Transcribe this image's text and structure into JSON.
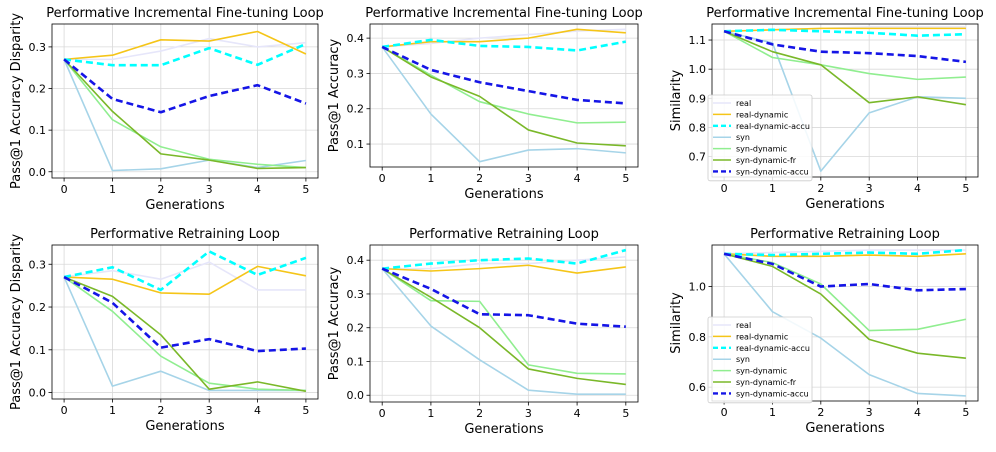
{
  "chart_data": [
    {
      "type": "line",
      "title": "Performative Incremental Fine-tuning Loop",
      "xlabel": "Generations",
      "ylabel": "Pass@1 Accuracy Disparity",
      "x": [
        0,
        1,
        2,
        3,
        4,
        5
      ],
      "xlim": [
        -0.25,
        5.25
      ],
      "ylim": [
        -0.015,
        0.355
      ],
      "yticks": [
        "0.0",
        "0.1",
        "0.2",
        "0.3"
      ],
      "grid": true,
      "legend": "none",
      "series": [
        {
          "name": "real",
          "color": "#e6e6fa",
          "style": "solid",
          "values": [
            0.27,
            0.27,
            0.29,
            0.32,
            0.3,
            0.31
          ]
        },
        {
          "name": "real-dynamic",
          "color": "#f5c518",
          "style": "solid",
          "values": [
            0.27,
            0.28,
            0.317,
            0.314,
            0.337,
            0.283
          ]
        },
        {
          "name": "real-dynamic-accu",
          "color": "#00ffff",
          "style": "dashed",
          "values": [
            0.27,
            0.256,
            0.256,
            0.297,
            0.257,
            0.307
          ]
        },
        {
          "name": "syn",
          "color": "#a6d4e8",
          "style": "solid",
          "values": [
            0.27,
            0.003,
            0.007,
            0.028,
            0.01,
            0.027
          ]
        },
        {
          "name": "syn-dynamic",
          "color": "#90ee90",
          "style": "solid",
          "values": [
            0.27,
            0.125,
            0.06,
            0.03,
            0.018,
            0.01
          ]
        },
        {
          "name": "syn-dynamic-fr",
          "color": "#7ab829",
          "style": "solid",
          "values": [
            0.27,
            0.145,
            0.043,
            0.028,
            0.008,
            0.01
          ]
        },
        {
          "name": "syn-dynamic-accu",
          "color": "#1515e6",
          "style": "dashed",
          "values": [
            0.27,
            0.175,
            0.143,
            0.182,
            0.208,
            0.164
          ]
        }
      ]
    },
    {
      "type": "line",
      "title": "Performative Incremental Fine-tuning Loop",
      "xlabel": "Generations",
      "ylabel": "Pass@1 Accuracy",
      "x": [
        0,
        1,
        2,
        3,
        4,
        5
      ],
      "xlim": [
        -0.25,
        5.25
      ],
      "ylim": [
        0.035,
        0.44
      ],
      "yticks": [
        "0.1",
        "0.2",
        "0.3",
        "0.4"
      ],
      "grid": true,
      "legend": "none",
      "series": [
        {
          "name": "real",
          "color": "#e6e6fa",
          "style": "solid",
          "values": [
            0.375,
            0.385,
            0.4,
            0.41,
            0.42,
            0.425
          ]
        },
        {
          "name": "real-dynamic",
          "color": "#f5c518",
          "style": "solid",
          "values": [
            0.375,
            0.39,
            0.39,
            0.4,
            0.425,
            0.415
          ]
        },
        {
          "name": "real-dynamic-accu",
          "color": "#00ffff",
          "style": "dashed",
          "values": [
            0.375,
            0.395,
            0.378,
            0.375,
            0.365,
            0.39
          ]
        },
        {
          "name": "syn",
          "color": "#a6d4e8",
          "style": "solid",
          "values": [
            0.375,
            0.185,
            0.05,
            0.083,
            0.087,
            0.075
          ]
        },
        {
          "name": "syn-dynamic",
          "color": "#90ee90",
          "style": "solid",
          "values": [
            0.375,
            0.295,
            0.22,
            0.185,
            0.16,
            0.162
          ]
        },
        {
          "name": "syn-dynamic-fr",
          "color": "#7ab829",
          "style": "solid",
          "values": [
            0.375,
            0.29,
            0.235,
            0.14,
            0.103,
            0.095
          ]
        },
        {
          "name": "syn-dynamic-accu",
          "color": "#1515e6",
          "style": "dashed",
          "values": [
            0.375,
            0.31,
            0.275,
            0.25,
            0.225,
            0.215
          ]
        }
      ]
    },
    {
      "type": "line",
      "title": "Performative Incremental Fine-tuning Loop",
      "xlabel": "Generations",
      "ylabel": "Similarity",
      "x": [
        0,
        1,
        2,
        3,
        4,
        5
      ],
      "xlim": [
        -0.25,
        5.25
      ],
      "ylim": [
        0.63,
        1.155
      ],
      "yticks": [
        "0.7",
        "0.8",
        "0.9",
        "1.0",
        "1.1"
      ],
      "grid": true,
      "legend": "top-left",
      "series": [
        {
          "name": "real",
          "color": "#e6e6fa",
          "style": "solid",
          "values": [
            1.13,
            1.135,
            1.14,
            1.145,
            1.145,
            1.145
          ]
        },
        {
          "name": "real-dynamic",
          "color": "#f5c518",
          "style": "solid",
          "values": [
            1.13,
            1.135,
            1.14,
            1.14,
            1.14,
            1.14
          ]
        },
        {
          "name": "real-dynamic-accu",
          "color": "#00ffff",
          "style": "dashed",
          "values": [
            1.13,
            1.135,
            1.13,
            1.125,
            1.115,
            1.12
          ]
        },
        {
          "name": "syn",
          "color": "#a6d4e8",
          "style": "solid",
          "values": [
            1.13,
            1.09,
            0.65,
            0.85,
            0.905,
            0.9
          ]
        },
        {
          "name": "syn-dynamic",
          "color": "#90ee90",
          "style": "solid",
          "values": [
            1.13,
            1.04,
            1.015,
            0.985,
            0.965,
            0.973
          ]
        },
        {
          "name": "syn-dynamic-fr",
          "color": "#7ab829",
          "style": "solid",
          "values": [
            1.13,
            1.06,
            1.015,
            0.885,
            0.905,
            0.878
          ]
        },
        {
          "name": "syn-dynamic-accu",
          "color": "#1515e6",
          "style": "dashed",
          "values": [
            1.13,
            1.085,
            1.06,
            1.055,
            1.045,
            1.025
          ]
        }
      ]
    },
    {
      "type": "line",
      "title": "Performative Retraining Loop",
      "xlabel": "Generations",
      "ylabel": "Pass@1 Accuracy Disparity",
      "x": [
        0,
        1,
        2,
        3,
        4,
        5
      ],
      "xlim": [
        -0.25,
        5.25
      ],
      "ylim": [
        -0.015,
        0.345
      ],
      "yticks": [
        "0.0",
        "0.1",
        "0.2",
        "0.3"
      ],
      "grid": true,
      "legend": "none",
      "series": [
        {
          "name": "real",
          "color": "#e6e6fa",
          "style": "solid",
          "values": [
            0.27,
            0.285,
            0.265,
            0.305,
            0.24,
            0.24
          ]
        },
        {
          "name": "real-dynamic",
          "color": "#f5c518",
          "style": "solid",
          "values": [
            0.27,
            0.265,
            0.233,
            0.23,
            0.295,
            0.273
          ]
        },
        {
          "name": "real-dynamic-accu",
          "color": "#00ffff",
          "style": "dashed",
          "values": [
            0.27,
            0.293,
            0.24,
            0.33,
            0.275,
            0.315
          ]
        },
        {
          "name": "syn",
          "color": "#a6d4e8",
          "style": "solid",
          "values": [
            0.27,
            0.015,
            0.05,
            0.005,
            0.005,
            0.005
          ]
        },
        {
          "name": "syn-dynamic",
          "color": "#90ee90",
          "style": "solid",
          "values": [
            0.27,
            0.19,
            0.085,
            0.022,
            0.008,
            0.005
          ]
        },
        {
          "name": "syn-dynamic-fr",
          "color": "#7ab829",
          "style": "solid",
          "values": [
            0.27,
            0.225,
            0.135,
            0.008,
            0.025,
            0.003
          ]
        },
        {
          "name": "syn-dynamic-accu",
          "color": "#1515e6",
          "style": "dashed",
          "values": [
            0.27,
            0.21,
            0.105,
            0.125,
            0.097,
            0.103
          ]
        }
      ]
    },
    {
      "type": "line",
      "title": "Performative Retraining Loop",
      "xlabel": "Generations",
      "ylabel": "Pass@1 Accuracy",
      "x": [
        0,
        1,
        2,
        3,
        4,
        5
      ],
      "xlim": [
        -0.25,
        5.25
      ],
      "ylim": [
        -0.02,
        0.445
      ],
      "yticks": [
        "0.0",
        "0.1",
        "0.2",
        "0.3",
        "0.4"
      ],
      "grid": true,
      "legend": "none",
      "series": [
        {
          "name": "real",
          "color": "#e6e6fa",
          "style": "solid",
          "values": [
            0.375,
            0.375,
            0.39,
            0.39,
            0.4,
            0.41
          ]
        },
        {
          "name": "real-dynamic",
          "color": "#f5c518",
          "style": "solid",
          "values": [
            0.375,
            0.368,
            0.375,
            0.385,
            0.362,
            0.38
          ]
        },
        {
          "name": "real-dynamic-accu",
          "color": "#00ffff",
          "style": "dashed",
          "values": [
            0.375,
            0.39,
            0.4,
            0.405,
            0.39,
            0.43
          ]
        },
        {
          "name": "syn",
          "color": "#a6d4e8",
          "style": "solid",
          "values": [
            0.375,
            0.205,
            0.105,
            0.015,
            0.003,
            0.003
          ]
        },
        {
          "name": "syn-dynamic",
          "color": "#90ee90",
          "style": "solid",
          "values": [
            0.375,
            0.28,
            0.278,
            0.09,
            0.065,
            0.063
          ]
        },
        {
          "name": "syn-dynamic-fr",
          "color": "#7ab829",
          "style": "solid",
          "values": [
            0.375,
            0.29,
            0.2,
            0.078,
            0.05,
            0.032
          ]
        },
        {
          "name": "syn-dynamic-accu",
          "color": "#1515e6",
          "style": "dashed",
          "values": [
            0.375,
            0.315,
            0.24,
            0.237,
            0.212,
            0.203
          ]
        }
      ]
    },
    {
      "type": "line",
      "title": "Performative Retraining Loop",
      "xlabel": "Generations",
      "ylabel": "Similarity",
      "x": [
        0,
        1,
        2,
        3,
        4,
        5
      ],
      "xlim": [
        -0.25,
        5.25
      ],
      "ylim": [
        0.545,
        1.165
      ],
      "yticks": [
        "0.6",
        "0.8",
        "1.0"
      ],
      "grid": true,
      "legend": "bottom-left",
      "series": [
        {
          "name": "real",
          "color": "#e6e6fa",
          "style": "solid",
          "values": [
            1.13,
            1.135,
            1.14,
            1.145,
            1.145,
            1.145
          ]
        },
        {
          "name": "real-dynamic",
          "color": "#f5c518",
          "style": "solid",
          "values": [
            1.13,
            1.12,
            1.12,
            1.125,
            1.12,
            1.13
          ]
        },
        {
          "name": "real-dynamic-accu",
          "color": "#00ffff",
          "style": "dashed",
          "values": [
            1.13,
            1.125,
            1.13,
            1.135,
            1.13,
            1.145
          ]
        },
        {
          "name": "syn",
          "color": "#a6d4e8",
          "style": "solid",
          "values": [
            1.13,
            0.9,
            0.795,
            0.65,
            0.575,
            0.565
          ]
        },
        {
          "name": "syn-dynamic",
          "color": "#90ee90",
          "style": "solid",
          "values": [
            1.13,
            1.095,
            1.01,
            0.825,
            0.83,
            0.87
          ]
        },
        {
          "name": "syn-dynamic-fr",
          "color": "#7ab829",
          "style": "solid",
          "values": [
            1.13,
            1.08,
            0.97,
            0.79,
            0.735,
            0.715
          ]
        },
        {
          "name": "syn-dynamic-accu",
          "color": "#1515e6",
          "style": "dashed",
          "values": [
            1.13,
            1.09,
            1.0,
            1.01,
            0.985,
            0.99
          ]
        }
      ]
    }
  ]
}
